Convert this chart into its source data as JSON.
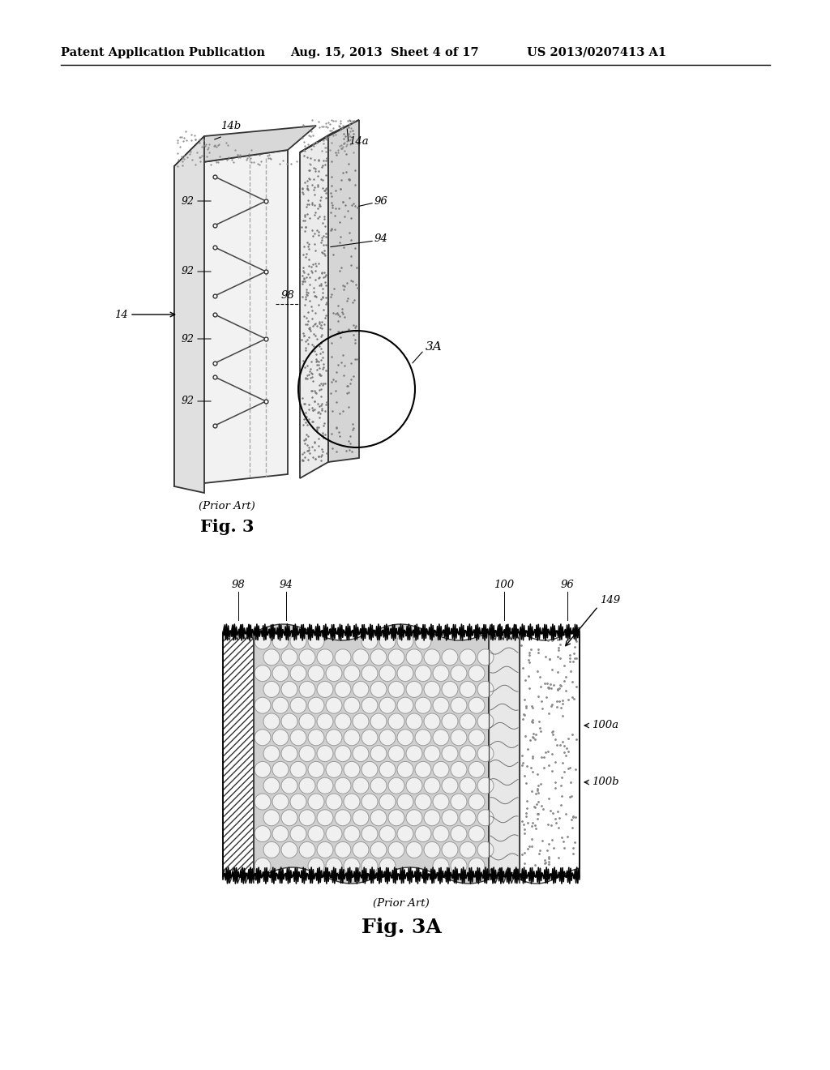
{
  "bg_color": "#ffffff",
  "header_left": "Patent Application Publication",
  "header_mid": "Aug. 15, 2013  Sheet 4 of 17",
  "header_right": "US 2013/0207413 A1",
  "fig3_caption": "(Prior Art)",
  "fig3_label": "Fig. 3",
  "fig3A_caption": "(Prior Art)",
  "fig3A_label": "Fig. 3A",
  "label_14b": "14b",
  "label_14a": "14a",
  "label_14": "14",
  "label_92": "92",
  "label_94": "94",
  "label_96": "96",
  "label_98": "98",
  "label_3A": "3A",
  "label_149": "149",
  "label_100": "100",
  "label_100a": "100a",
  "label_100b": "100b"
}
